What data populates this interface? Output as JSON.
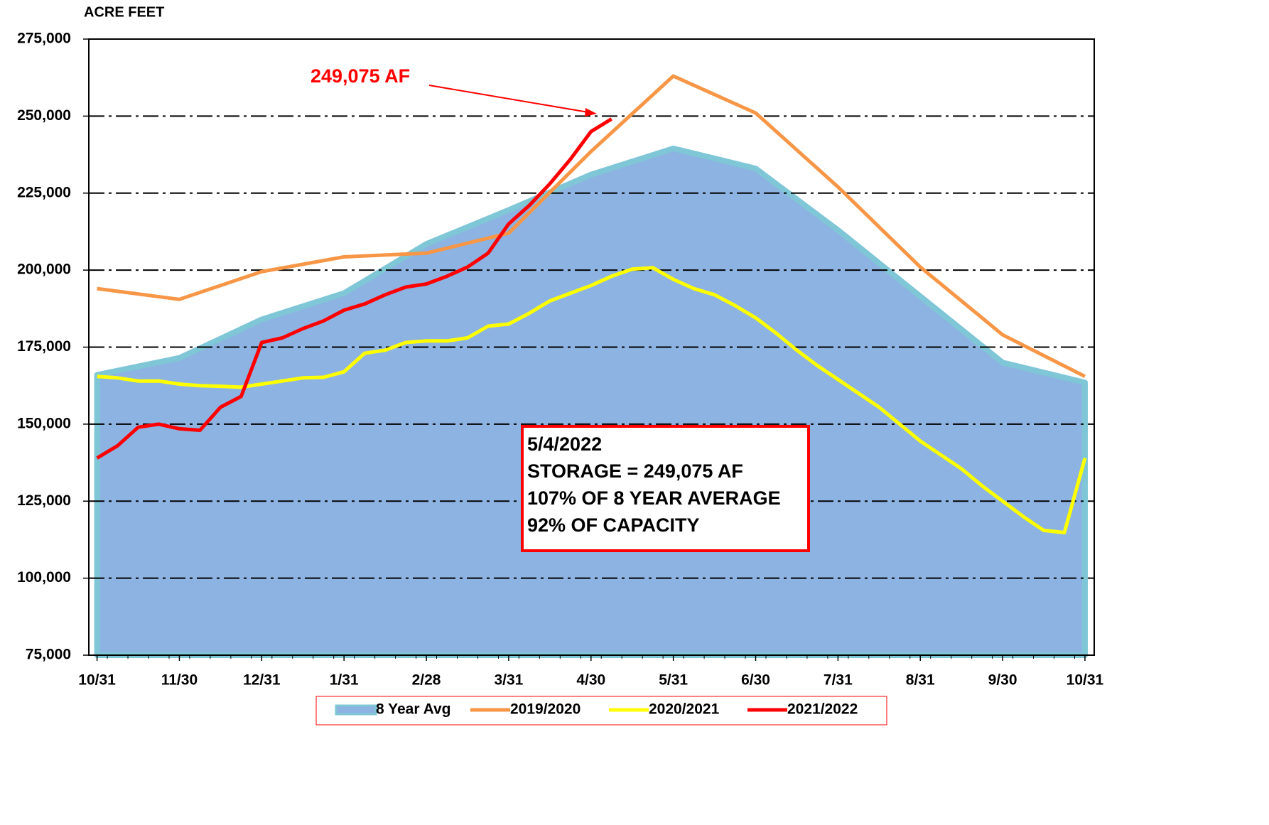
{
  "chart_data": {
    "type": "line",
    "y_label": "ACRE FEET",
    "xlim": [
      -0.4,
      48.45
    ],
    "xticks": [
      {
        "value": 0,
        "label": "10/31"
      },
      {
        "value": 4,
        "label": "11/30"
      },
      {
        "value": 8,
        "label": "12/31"
      },
      {
        "value": 12,
        "label": "1/31"
      },
      {
        "value": 16,
        "label": "2/28"
      },
      {
        "value": 20,
        "label": "3/31"
      },
      {
        "value": 24,
        "label": "4/30"
      },
      {
        "value": 28,
        "label": "5/31"
      },
      {
        "value": 32,
        "label": "6/30"
      },
      {
        "value": 36,
        "label": "7/31"
      },
      {
        "value": 40,
        "label": "8/31"
      },
      {
        "value": 44,
        "label": "9/30"
      },
      {
        "value": 48,
        "label": "10/31"
      }
    ],
    "ylim": [
      75000,
      275000
    ],
    "yticks": [
      {
        "value": 75000,
        "label": "75,000"
      },
      {
        "value": 100000,
        "label": "100,000"
      },
      {
        "value": 125000,
        "label": "125,000"
      },
      {
        "value": 150000,
        "label": "150,000"
      },
      {
        "value": 175000,
        "label": "175,000"
      },
      {
        "value": 200000,
        "label": "200,000"
      },
      {
        "value": 225000,
        "label": "225,000"
      },
      {
        "value": 250000,
        "label": "250,000"
      },
      {
        "value": 275000,
        "label": "275,000"
      }
    ],
    "grid": true,
    "series": [
      {
        "name": "8 Year Avg",
        "kind": "area",
        "color": "#8db3e2",
        "edge_color": "#7fc7d6",
        "x": [
          0,
          4,
          8,
          12,
          16,
          20,
          24,
          28,
          32,
          36,
          40,
          44,
          48
        ],
        "values": [
          166000,
          171500,
          184000,
          192500,
          208500,
          219500,
          231000,
          239500,
          233000,
          213000,
          191500,
          170000,
          163500
        ]
      },
      {
        "name": "2019/2020",
        "kind": "line",
        "color": "#f79646",
        "x": [
          0,
          4,
          8,
          12,
          16,
          20,
          24,
          28,
          32,
          36,
          40,
          44,
          48
        ],
        "values": [
          194000,
          190500,
          199500,
          204300,
          205500,
          212000,
          238500,
          263000,
          251000,
          227000,
          201000,
          179000,
          165500
        ]
      },
      {
        "name": "2020/2021",
        "kind": "line",
        "color": "#ffff00",
        "x": [
          0,
          1,
          2,
          3,
          4,
          5,
          6,
          7,
          8,
          9,
          10,
          11,
          12,
          13,
          14,
          15,
          16,
          17,
          18,
          19,
          20,
          21,
          22,
          23,
          24,
          25,
          26,
          27,
          28,
          29,
          30,
          31,
          32,
          33,
          34,
          35,
          36,
          37,
          38,
          39,
          40,
          41,
          42,
          43,
          44,
          45,
          46,
          47,
          48
        ],
        "values": [
          165500,
          165000,
          164000,
          164000,
          163000,
          162500,
          162300,
          162000,
          163000,
          164000,
          165000,
          165200,
          167000,
          173000,
          174000,
          176500,
          177000,
          177000,
          178000,
          181800,
          182500,
          186000,
          190000,
          192500,
          195000,
          198000,
          200300,
          200800,
          197000,
          194000,
          192000,
          188500,
          184500,
          179500,
          174000,
          169000,
          164500,
          160000,
          155500,
          150000,
          144500,
          140000,
          135500,
          130000,
          125000,
          120000,
          115500,
          114800,
          139000
        ]
      },
      {
        "name": "2021/2022",
        "kind": "line",
        "color": "#ff0000",
        "x": [
          0,
          1,
          2,
          3,
          4,
          5,
          6,
          7,
          8,
          9,
          10,
          11,
          12,
          13,
          14,
          15,
          16,
          17,
          18,
          19,
          20,
          21,
          22,
          23,
          24,
          25
        ],
        "values": [
          139000,
          143000,
          149000,
          150000,
          148500,
          148000,
          155500,
          159000,
          176500,
          178000,
          181000,
          183500,
          187000,
          189000,
          192000,
          194500,
          195500,
          198000,
          201000,
          205500,
          215000,
          221000,
          228000,
          236000,
          245000,
          249075
        ]
      }
    ],
    "annotation": "249,075 AF",
    "info_box": [
      "5/4/2022",
      "STORAGE = 249,075 AF",
      "107% OF 8 YEAR AVERAGE",
      "92% OF CAPACITY"
    ]
  }
}
